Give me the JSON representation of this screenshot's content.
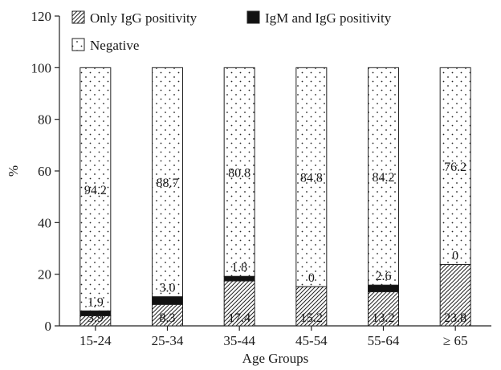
{
  "chart_data": {
    "type": "bar",
    "stacked": true,
    "xlabel": "Age Groups",
    "ylabel": "%",
    "ylim": [
      0,
      120
    ],
    "yticks": [
      0,
      20,
      40,
      60,
      80,
      100,
      120
    ],
    "categories": [
      "15-24",
      "25-34",
      "35-44",
      "45-54",
      "55-64",
      "≥ 65"
    ],
    "series": [
      {
        "name": "Only IgG positivity",
        "pattern": "hatch",
        "values": [
          3.9,
          8.3,
          17.4,
          15.2,
          13.2,
          23.8
        ],
        "labels": [
          "3.9",
          "8.3",
          "17.4",
          "15.2",
          "13.2",
          "23.8"
        ]
      },
      {
        "name": "IgM and IgG positivity",
        "pattern": "solid",
        "values": [
          1.9,
          3.0,
          1.8,
          0,
          2.6,
          0
        ],
        "labels": [
          "1.9",
          "3.0",
          "1.8",
          "0",
          "2.6",
          "0"
        ]
      },
      {
        "name": "Negative",
        "pattern": "dots",
        "values": [
          94.2,
          88.7,
          80.8,
          84.8,
          84.2,
          76.2
        ],
        "labels": [
          "94.2",
          "88.7",
          "80.8",
          "84.8",
          "84.2",
          "76.2"
        ]
      }
    ],
    "legend_position": "top"
  }
}
